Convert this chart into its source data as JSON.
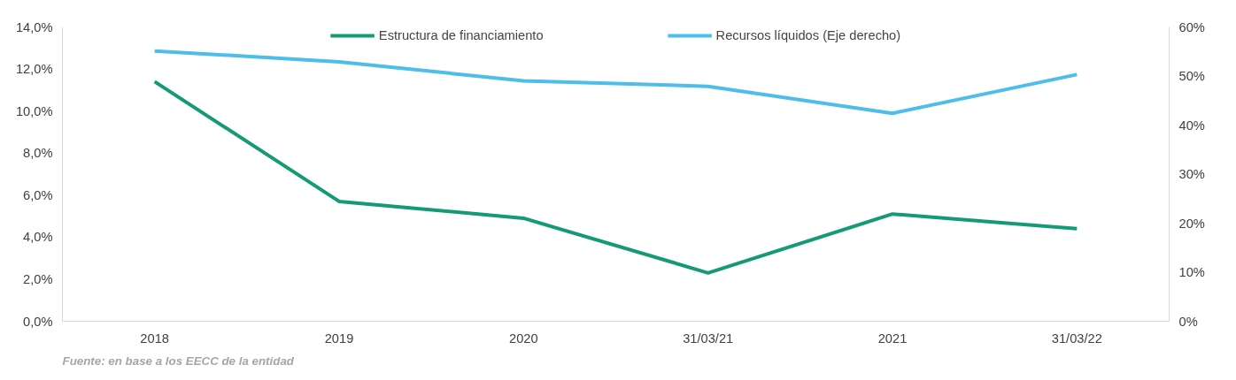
{
  "chart_data": {
    "type": "line",
    "categories": [
      "2018",
      "2019",
      "2020",
      "31/03/21",
      "2021",
      "31/03/22"
    ],
    "series": [
      {
        "name": "Estructura de financiamiento",
        "color": "#149a74",
        "values": [
          11.4,
          5.7,
          4.9,
          2.3,
          5.1,
          4.4
        ]
      },
      {
        "name": "Recursos líquidos (Eje derecho)",
        "color": "#4dbde9",
        "axis": "y2",
        "values": [
          55.1,
          52.9,
          49.0,
          47.9,
          42.4,
          50.3
        ]
      }
    ],
    "ylim": [
      0,
      14
    ],
    "yticks": [
      {
        "value": 0,
        "label": "0,0%"
      },
      {
        "value": 2,
        "label": "2,0%"
      },
      {
        "value": 4,
        "label": "4,0%"
      },
      {
        "value": 6,
        "label": "6,0%"
      },
      {
        "value": 8,
        "label": "8,0%"
      },
      {
        "value": 10,
        "label": "10,0%"
      },
      {
        "value": 12,
        "label": "12,0%"
      },
      {
        "value": 14,
        "label": "14,0%"
      }
    ],
    "y2lim": [
      0,
      60
    ],
    "y2ticks": [
      {
        "value": 0,
        "label": "0%"
      },
      {
        "value": 10,
        "label": "10%"
      },
      {
        "value": 20,
        "label": "20%"
      },
      {
        "value": 30,
        "label": "30%"
      },
      {
        "value": 40,
        "label": "40%"
      },
      {
        "value": 50,
        "label": "50%"
      },
      {
        "value": 60,
        "label": "60%"
      }
    ],
    "annotations": [
      "Fuente: en base a los EECC de la entidad"
    ],
    "legend": "top",
    "grid": false,
    "marker": "none",
    "line_style": "solid"
  }
}
